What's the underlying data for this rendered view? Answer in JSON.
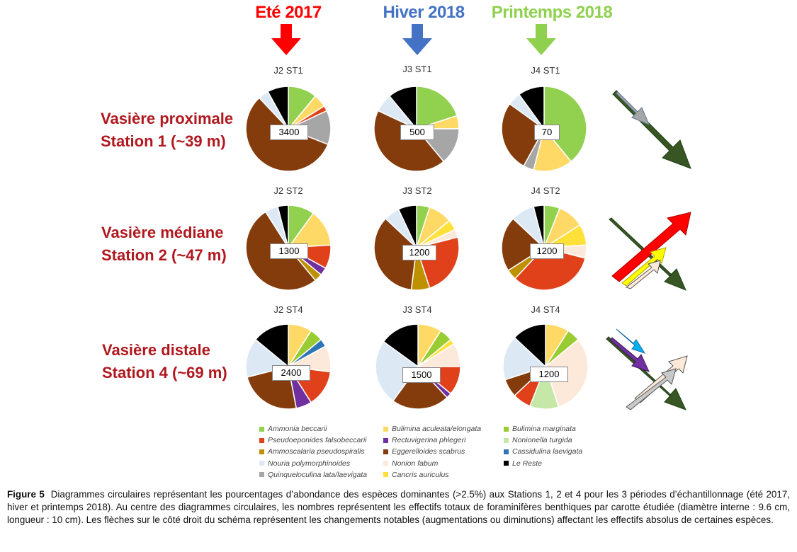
{
  "seasons": [
    {
      "label": "Eté 2017",
      "color": "#ff0000"
    },
    {
      "label": "Hiver 2018",
      "color": "#4472c4"
    },
    {
      "label": "Printemps 2018",
      "color": "#8fd14f"
    }
  ],
  "rows": [
    {
      "line1": "Vasière proximale",
      "line2": "Station 1 (~39 m)"
    },
    {
      "line1": "Vasière médiane",
      "line2": "Station 2 (~47 m)"
    },
    {
      "line1": "Vasière distale",
      "line2": "Station 4 (~69 m)"
    }
  ],
  "chart_data": {
    "type": "pie",
    "species": [
      {
        "name": "Ammonia beccarii",
        "color": "#92d050"
      },
      {
        "name": "Bulimina aculeata/elongata",
        "color": "#ffd966"
      },
      {
        "name": "Bulimina marginata",
        "color": "#99cc33"
      },
      {
        "name": "Pseudoeponides falsobeccarii",
        "color": "#e0401a"
      },
      {
        "name": "Rectuvigerina phlegeri",
        "color": "#7030a0"
      },
      {
        "name": "Nonionella turgida",
        "color": "#c5e8a8"
      },
      {
        "name": "Ammoscalaria pseudospiralis",
        "color": "#bf9000"
      },
      {
        "name": "Eggerelloides scabrus",
        "color": "#843c0c"
      },
      {
        "name": "Cassidulina laevigata",
        "color": "#2e75b6"
      },
      {
        "name": "Nouria polymorphinoides",
        "color": "#dce9f5"
      },
      {
        "name": "Nonion fabum",
        "color": "#fde9d9"
      },
      {
        "name": "Le Reste",
        "color": "#000000"
      },
      {
        "name": "Quinqueloculina lata/laevigata",
        "color": "#a6a6a6"
      },
      {
        "name": "Cancris auriculus",
        "color": "#ffe13a"
      }
    ],
    "pies": [
      {
        "title": "J2 ST1",
        "count": "3400",
        "slices": [
          [
            "Ammonia beccarii",
            11
          ],
          [
            "Bulimina aculeata/elongata",
            5
          ],
          [
            "Pseudoeponides falsobeccarii",
            2
          ],
          [
            "Quinqueloculina lata/laevigata",
            13
          ],
          [
            "Eggerelloides scabrus",
            57
          ],
          [
            "Nouria polymorphinoides",
            4
          ],
          [
            "Le Reste",
            8
          ]
        ]
      },
      {
        "title": "J3 ST1",
        "count": "500",
        "slices": [
          [
            "Ammonia beccarii",
            20
          ],
          [
            "Bulimina aculeata/elongata",
            5
          ],
          [
            "Quinqueloculina lata/laevigata",
            14
          ],
          [
            "Eggerelloides scabrus",
            43
          ],
          [
            "Nouria polymorphinoides",
            7
          ],
          [
            "Le Reste",
            11
          ]
        ]
      },
      {
        "title": "J4 ST1",
        "count": "70",
        "slices": [
          [
            "Ammonia beccarii",
            39
          ],
          [
            "Bulimina aculeata/elongata",
            15
          ],
          [
            "Quinqueloculina lata/laevigata",
            4
          ],
          [
            "Eggerelloides scabrus",
            27
          ],
          [
            "Nouria polymorphinoides",
            5
          ],
          [
            "Le Reste",
            10
          ]
        ]
      },
      {
        "title": "J2 ST2",
        "count": "1300",
        "slices": [
          [
            "Ammonia beccarii",
            10
          ],
          [
            "Bulimina aculeata/elongata",
            14
          ],
          [
            "Pseudoeponides falsobeccarii",
            9
          ],
          [
            "Rectuvigerina phlegeri",
            3
          ],
          [
            "Ammoscalaria pseudospiralis",
            3
          ],
          [
            "Eggerelloides scabrus",
            52
          ],
          [
            "Nouria polymorphinoides",
            5
          ],
          [
            "Le Reste",
            4
          ]
        ]
      },
      {
        "title": "J3 ST2",
        "count": "1200",
        "slices": [
          [
            "Ammonia beccarii",
            5
          ],
          [
            "Bulimina aculeata/elongata",
            9
          ],
          [
            "Cancris auriculus",
            4
          ],
          [
            "Nonion fabum",
            3
          ],
          [
            "Pseudoeponides falsobeccarii",
            24
          ],
          [
            "Ammoscalaria pseudospiralis",
            7
          ],
          [
            "Eggerelloides scabrus",
            35
          ],
          [
            "Nouria polymorphinoides",
            6
          ],
          [
            "Le Reste",
            7
          ]
        ]
      },
      {
        "title": "J4 ST2",
        "count": "1200",
        "slices": [
          [
            "Ammonia beccarii",
            6
          ],
          [
            "Bulimina aculeata/elongata",
            10
          ],
          [
            "Cancris auriculus",
            8
          ],
          [
            "Nonion fabum",
            5
          ],
          [
            "Pseudoeponides falsobeccarii",
            33
          ],
          [
            "Ammoscalaria pseudospiralis",
            4
          ],
          [
            "Eggerelloides scabrus",
            21
          ],
          [
            "Nouria polymorphinoides",
            9
          ],
          [
            "Le Reste",
            4
          ]
        ]
      },
      {
        "title": "J2 ST4",
        "count": "2400",
        "slices": [
          [
            "Bulimina aculeata/elongata",
            9
          ],
          [
            "Bulimina marginata",
            5
          ],
          [
            "Cassidulina laevigata",
            3
          ],
          [
            "Nonion fabum",
            10
          ],
          [
            "Pseudoeponides falsobeccarii",
            14
          ],
          [
            "Rectuvigerina phlegeri",
            6
          ],
          [
            "Eggerelloides scabrus",
            24
          ],
          [
            "Nouria polymorphinoides",
            15
          ],
          [
            "Le Reste",
            14
          ]
        ]
      },
      {
        "title": "J3 ST4",
        "count": "1500",
        "slices": [
          [
            "Bulimina aculeata/elongata",
            9
          ],
          [
            "Bulimina marginata",
            5
          ],
          [
            "Cancris auriculus",
            2
          ],
          [
            "Nonion fabum",
            9
          ],
          [
            "Pseudoeponides falsobeccarii",
            11
          ],
          [
            "Rectuvigerina phlegeri",
            2
          ],
          [
            "Eggerelloides scabrus",
            22
          ],
          [
            "Nouria polymorphinoides",
            25
          ],
          [
            "Le Reste",
            15
          ]
        ]
      },
      {
        "title": "J4 ST4",
        "count": "1200",
        "slices": [
          [
            "Bulimina aculeata/elongata",
            9
          ],
          [
            "Bulimina marginata",
            5
          ],
          [
            "Nonion fabum",
            31
          ],
          [
            "Nonionella turgida",
            11
          ],
          [
            "Pseudoeponides falsobeccarii",
            7
          ],
          [
            "Eggerelloides scabrus",
            7
          ],
          [
            "Nouria polymorphinoides",
            17
          ],
          [
            "Le Reste",
            13
          ]
        ]
      }
    ]
  },
  "legend": [
    "Ammonia beccarii",
    "Bulimina aculeata/elongata",
    "Bulimina marginata",
    "Pseudoeponides falsobeccarii",
    "Rectuvigerina phlegeri",
    "Nonionella turgida",
    "Ammoscalaria pseudospiralis",
    "Eggerelloides scabrus",
    "Cassidulina laevigata",
    "Nouria polymorphinoides",
    "Nonion fabum",
    "Le Reste",
    "Quinqueloculina lata/laevigata",
    "Cancris auriculus"
  ],
  "arrows": [
    [
      {
        "color": "#375623",
        "dir": "down"
      },
      {
        "color": "#a6a6a6",
        "dir": "down"
      }
    ],
    [
      {
        "color": "#375623",
        "dir": "down"
      },
      {
        "color": "#ff0000",
        "dir": "up"
      },
      {
        "color": "#ffff00",
        "dir": "up"
      },
      {
        "color": "#fde9d9",
        "dir": "up"
      }
    ],
    [
      {
        "color": "#375623",
        "dir": "down"
      },
      {
        "color": "#00b0f0",
        "dir": "down"
      },
      {
        "color": "#7030a0",
        "dir": "down"
      },
      {
        "color": "#fde9d9",
        "dir": "up"
      },
      {
        "color": "#c9c9c9",
        "dir": "up"
      }
    ]
  ],
  "caption": {
    "label": "Figure 5",
    "text": "Diagrammes circulaires représentant les pourcentages d’abondance des espèces dominantes (>2.5%) aux Stations 1, 2 et 4 pour les 3 périodes d’échantillonnage (été 2017, hiver et printemps 2018). Au centre des diagrammes circulaires, les nombres représentent les effectifs totaux de foraminifères benthiques par carotte étudiée (diamètre interne : 9.6 cm, longueur : 10 cm). Les flèches sur le côté droit du schéma représentent les changements notables (augmentations ou diminutions) affectant les effectifs absolus de certaines espèces."
  }
}
